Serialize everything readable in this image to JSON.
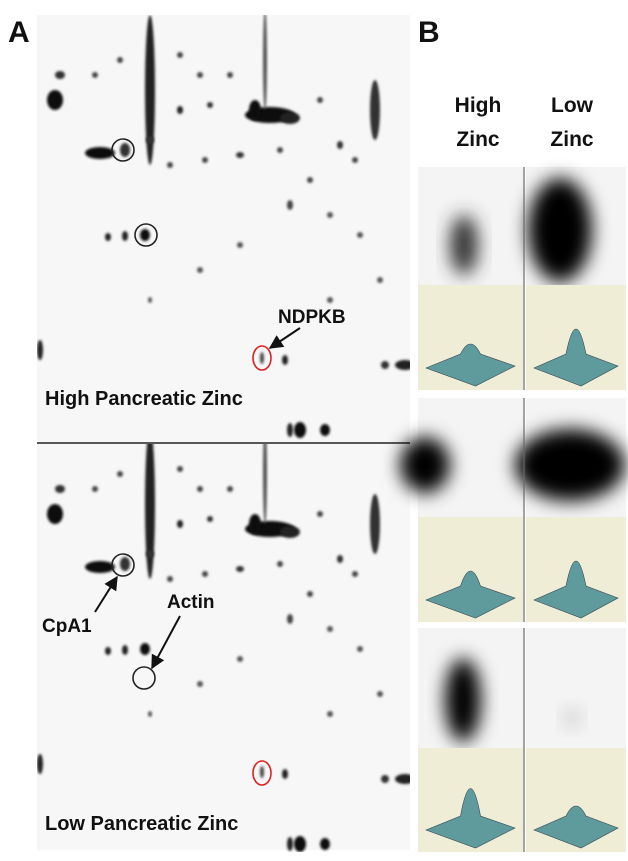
{
  "panel_a": {
    "label": "A",
    "top_gel": {
      "title": "High Pancreatic Zinc",
      "annotation": "NDPKB"
    },
    "bottom_gel": {
      "title": "Low Pancreatic Zinc",
      "annotations": [
        "CpA1",
        "Actin"
      ]
    }
  },
  "panel_b": {
    "label": "B",
    "columns": [
      {
        "lines": [
          "High",
          "Zinc"
        ]
      },
      {
        "lines": [
          "Low",
          "Zinc"
        ]
      }
    ]
  }
}
